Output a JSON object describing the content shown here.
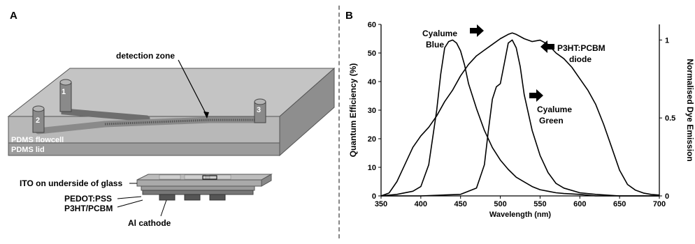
{
  "panel_a": {
    "label": "A",
    "detection_zone": "detection zone",
    "ports": [
      "1",
      "2",
      "3"
    ],
    "layers": {
      "flowcell": "PDMS flowcell",
      "lid": "PDMS lid"
    },
    "device": {
      "ito": "ITO on underside of glass",
      "pedot": "PEDOT:PSS",
      "p3ht": "P3HT/PCBM",
      "cathode": "Al cathode"
    }
  },
  "panel_b": {
    "label": "B",
    "annotations": {
      "cyalume_blue_line1": "Cyalume",
      "cyalume_blue_line2": "Blue",
      "p3ht_line1": "P3HT:PCBM",
      "p3ht_line2": "diode",
      "cyalume_green_line1": "Cyalume",
      "cyalume_green_line2": "Green"
    }
  },
  "chart_data": {
    "type": "line",
    "xlabel": "Wavelength (nm)",
    "ylabel": "Quantum Efficiency (%)",
    "y2label": "Normalised Dye Emission",
    "xlim": [
      350,
      700
    ],
    "ylim": [
      0,
      60
    ],
    "y2lim": [
      0,
      1.1
    ],
    "xticks": [
      350,
      400,
      450,
      500,
      550,
      600,
      650,
      700
    ],
    "yticks": [
      0,
      10,
      20,
      30,
      40,
      50,
      60
    ],
    "y2ticks": [
      {
        "value": 0,
        "label": "0"
      },
      {
        "value": 0.5,
        "label": "0.5"
      },
      {
        "value": 1,
        "label": "1"
      }
    ],
    "grid": false,
    "series": [
      {
        "name": "P3HT:PCBM diode",
        "axis": "left",
        "x": [
          350,
          360,
          370,
          380,
          390,
          400,
          410,
          420,
          430,
          440,
          450,
          460,
          470,
          480,
          490,
          500,
          510,
          515,
          520,
          530,
          540,
          550,
          560,
          570,
          580,
          590,
          600,
          610,
          620,
          630,
          640,
          650,
          660,
          670,
          680,
          690,
          700
        ],
        "y": [
          0,
          1,
          5,
          11,
          17,
          21,
          24,
          28,
          33,
          37,
          42,
          46,
          49,
          51,
          53,
          55,
          56.5,
          57,
          56.5,
          55,
          54,
          54.5,
          53,
          50,
          48,
          45,
          41,
          37,
          32,
          25,
          17,
          9,
          4,
          2,
          1,
          0.5,
          0.3
        ]
      },
      {
        "name": "Cyalume Blue",
        "axis": "right",
        "x": [
          350,
          370,
          390,
          400,
          410,
          420,
          425,
          430,
          435,
          440,
          445,
          450,
          455,
          460,
          470,
          480,
          490,
          500,
          510,
          520,
          530,
          540,
          550,
          560,
          570,
          580,
          600,
          620,
          650,
          680,
          700
        ],
        "y": [
          0,
          0.01,
          0.03,
          0.06,
          0.2,
          0.55,
          0.78,
          0.95,
          0.99,
          1.0,
          0.98,
          0.93,
          0.84,
          0.72,
          0.56,
          0.42,
          0.31,
          0.23,
          0.17,
          0.12,
          0.09,
          0.06,
          0.04,
          0.03,
          0.02,
          0.015,
          0.01,
          0,
          0,
          0,
          0
        ]
      },
      {
        "name": "Cyalume Green",
        "axis": "right",
        "x": [
          350,
          400,
          450,
          470,
          480,
          485,
          490,
          495,
          500,
          505,
          510,
          515,
          520,
          525,
          530,
          540,
          550,
          560,
          570,
          580,
          600,
          620,
          650,
          700
        ],
        "y": [
          0,
          0,
          0.01,
          0.05,
          0.2,
          0.42,
          0.62,
          0.7,
          0.72,
          0.85,
          0.98,
          1.0,
          0.95,
          0.83,
          0.65,
          0.42,
          0.26,
          0.15,
          0.08,
          0.05,
          0.02,
          0.01,
          0,
          0
        ]
      }
    ]
  }
}
